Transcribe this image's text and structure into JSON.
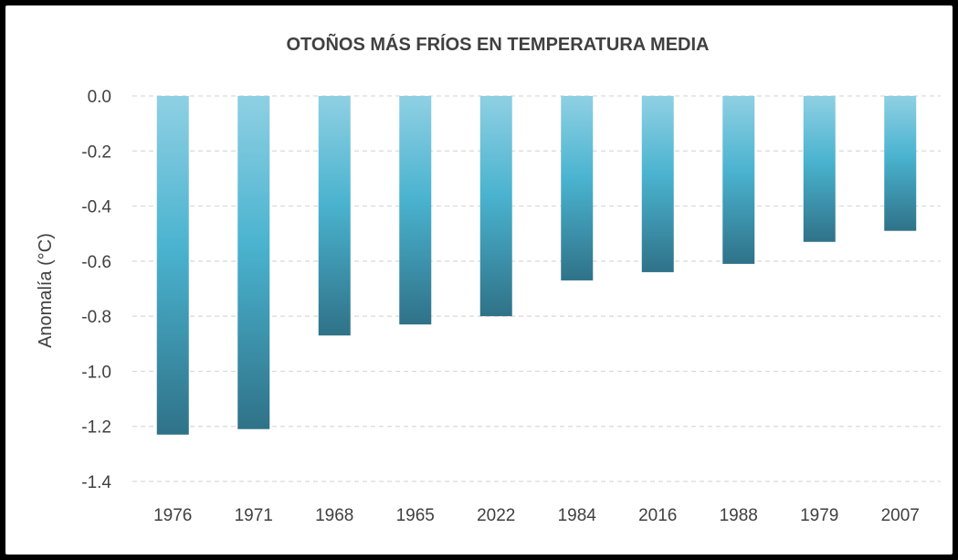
{
  "chart_data": {
    "type": "bar",
    "title": "OTOÑOS MÁS FRÍOS EN TEMPERATURA  MEDIA",
    "xlabel": "",
    "ylabel": "Anomalía (°C)",
    "ylim": [
      -1.4,
      0.0
    ],
    "yticks": [
      "0.0",
      "-0.2",
      "-0.4",
      "-0.6",
      "-0.8",
      "-1.0",
      "-1.2",
      "-1.4"
    ],
    "categories": [
      "1976",
      "1971",
      "1968",
      "1965",
      "2022",
      "1984",
      "2016",
      "1988",
      "1979",
      "2007"
    ],
    "values": [
      -1.23,
      -1.21,
      -0.87,
      -0.83,
      -0.8,
      -0.67,
      -0.64,
      -0.61,
      -0.53,
      -0.49
    ],
    "grid": true,
    "legend": "none",
    "colors": {
      "bar_top": "#8fd0e3",
      "bar_mid": "#4ab3cf",
      "bar_bottom": "#2f7288"
    }
  }
}
